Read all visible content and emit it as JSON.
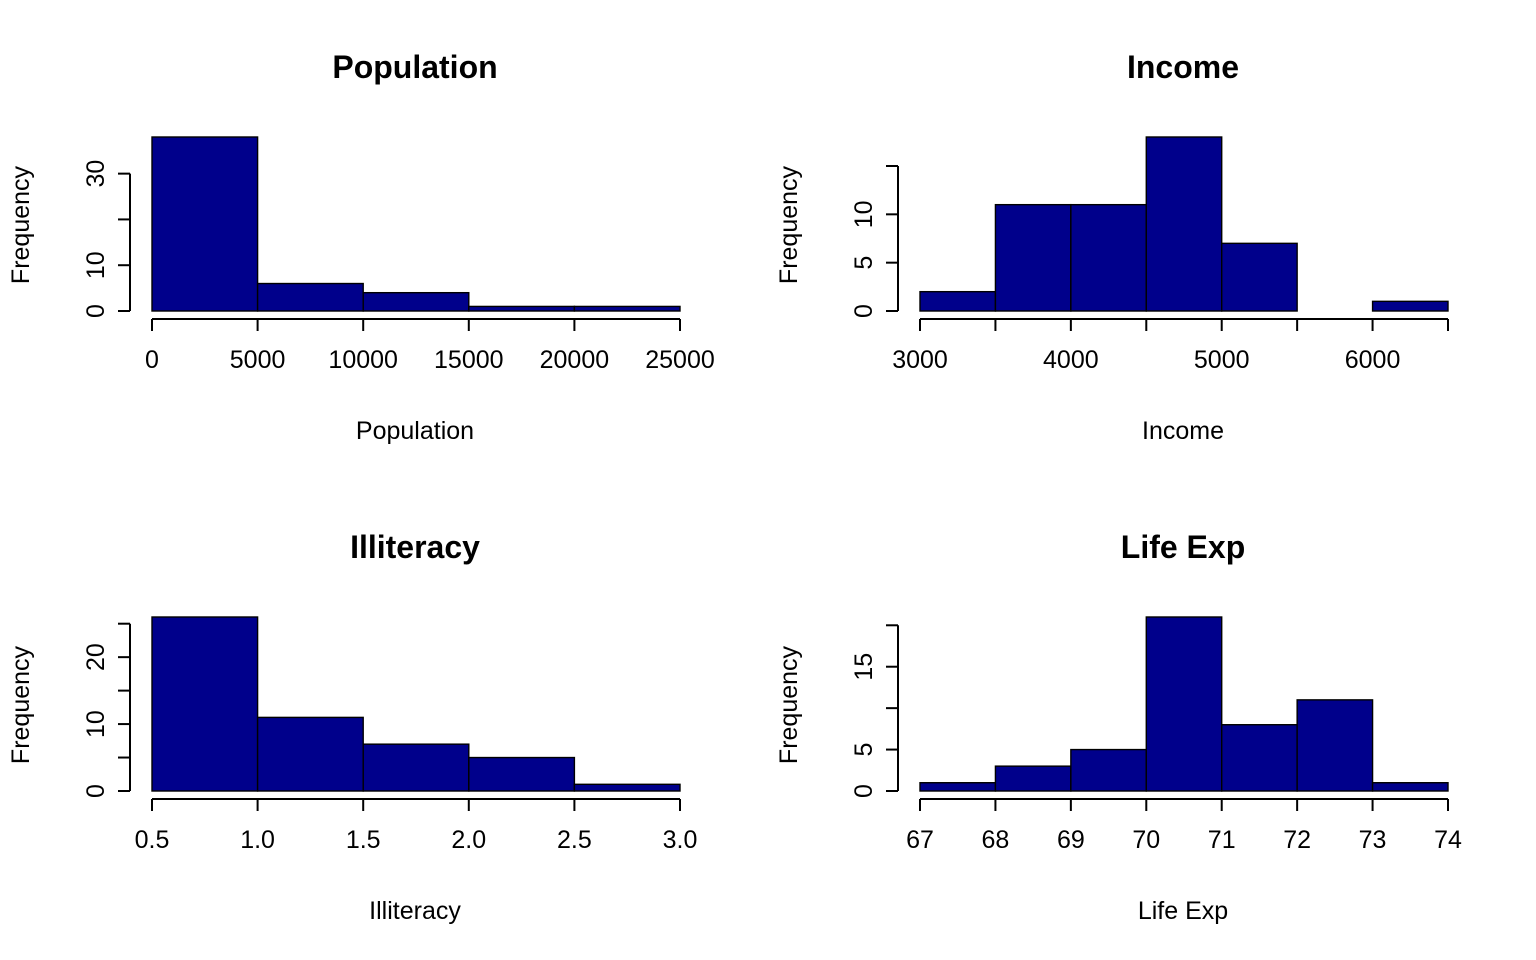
{
  "chart_data": [
    {
      "type": "bar",
      "title": "Population",
      "xlabel": "Population",
      "ylabel": "Frequency",
      "bins": [
        [
          0,
          5000
        ],
        [
          5000,
          10000
        ],
        [
          10000,
          15000
        ],
        [
          15000,
          20000
        ],
        [
          20000,
          25000
        ]
      ],
      "values": [
        38,
        6,
        4,
        1,
        1
      ],
      "x_ticks": [
        0,
        5000,
        10000,
        15000,
        20000,
        25000
      ],
      "x_tick_labels": [
        "0",
        "5000",
        "10000",
        "15000",
        "20000",
        "25000"
      ],
      "y_ticks": [
        0,
        10,
        20,
        30
      ],
      "y_tick_labels": [
        "0",
        "10",
        "",
        "30"
      ],
      "xlim": [
        0,
        25000
      ],
      "ylim": [
        0,
        38
      ],
      "color": "#00008B"
    },
    {
      "type": "bar",
      "title": "Income",
      "xlabel": "Income",
      "ylabel": "Frequency",
      "bins": [
        [
          3000,
          3500
        ],
        [
          3500,
          4000
        ],
        [
          4000,
          4500
        ],
        [
          4500,
          5000
        ],
        [
          5000,
          5500
        ],
        [
          5500,
          6000
        ],
        [
          6000,
          6500
        ]
      ],
      "values": [
        2,
        11,
        11,
        18,
        7,
        0,
        1
      ],
      "x_ticks": [
        3000,
        3500,
        4000,
        4500,
        5000,
        5500,
        6000,
        6500
      ],
      "x_tick_labels": [
        "3000",
        "",
        "4000",
        "",
        "5000",
        "",
        "6000",
        ""
      ],
      "y_ticks": [
        0,
        5,
        10,
        15
      ],
      "y_tick_labels": [
        "0",
        "5",
        "10",
        ""
      ],
      "xlim": [
        3000,
        6500
      ],
      "ylim": [
        0,
        18
      ],
      "color": "#00008B"
    },
    {
      "type": "bar",
      "title": "Illiteracy",
      "xlabel": "Illiteracy",
      "ylabel": "Frequency",
      "bins": [
        [
          0.5,
          1.0
        ],
        [
          1.0,
          1.5
        ],
        [
          1.5,
          2.0
        ],
        [
          2.0,
          2.5
        ],
        [
          2.5,
          3.0
        ]
      ],
      "values": [
        26,
        11,
        7,
        5,
        1
      ],
      "x_ticks": [
        0.5,
        1.0,
        1.5,
        2.0,
        2.5,
        3.0
      ],
      "x_tick_labels": [
        "0.5",
        "1.0",
        "1.5",
        "2.0",
        "2.5",
        "3.0"
      ],
      "y_ticks": [
        0,
        5,
        10,
        15,
        20,
        25
      ],
      "y_tick_labels": [
        "0",
        "",
        "10",
        "",
        "20",
        ""
      ],
      "xlim": [
        0.5,
        3.0
      ],
      "ylim": [
        0,
        26
      ],
      "color": "#00008B"
    },
    {
      "type": "bar",
      "title": "Life Exp",
      "xlabel": "Life Exp",
      "ylabel": "Frequency",
      "bins": [
        [
          67,
          68
        ],
        [
          68,
          69
        ],
        [
          69,
          70
        ],
        [
          70,
          71
        ],
        [
          71,
          72
        ],
        [
          72,
          73
        ],
        [
          73,
          74
        ]
      ],
      "values": [
        1,
        3,
        5,
        21,
        8,
        11,
        1
      ],
      "x_ticks": [
        67,
        68,
        69,
        70,
        71,
        72,
        73,
        74
      ],
      "x_tick_labels": [
        "67",
        "68",
        "69",
        "70",
        "71",
        "72",
        "73",
        "74"
      ],
      "y_ticks": [
        0,
        5,
        10,
        15,
        20
      ],
      "y_tick_labels": [
        "0",
        "5",
        "",
        "15",
        ""
      ],
      "xlim": [
        67,
        74
      ],
      "ylim": [
        0,
        21
      ],
      "color": "#00008B"
    }
  ]
}
